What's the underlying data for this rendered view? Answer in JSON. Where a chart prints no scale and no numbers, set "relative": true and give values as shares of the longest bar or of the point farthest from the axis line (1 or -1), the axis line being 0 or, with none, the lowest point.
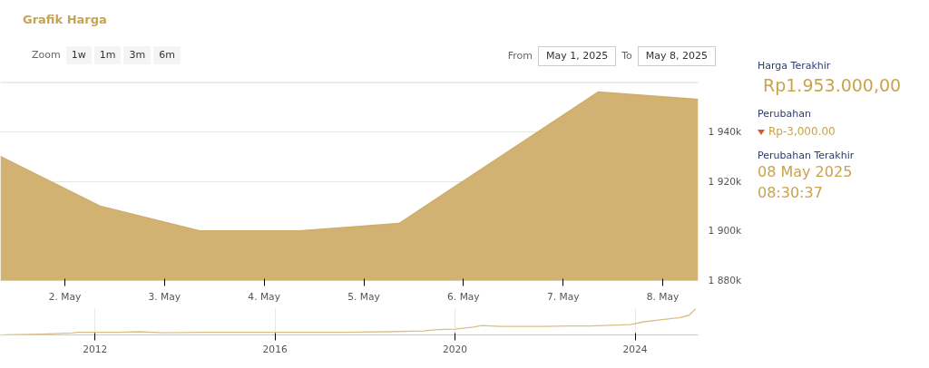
{
  "chart_data": [
    {
      "type": "area",
      "title": "Grafik Harga",
      "color": "#cfae6c",
      "x": [
        "2025-05-01T08:30",
        "2025-05-02T08:30",
        "2025-05-03T08:30",
        "2025-05-04T08:30",
        "2025-05-05T08:30",
        "2025-05-07T08:30",
        "2025-05-08T08:30"
      ],
      "values": [
        1930,
        1910,
        1900,
        1900,
        1903,
        1956,
        1953
      ],
      "xlim": [
        "2025-05-01T08:30",
        "2025-05-08T08:30"
      ],
      "xticks": [
        {
          "value": "2025-05-02",
          "label": "2. May"
        },
        {
          "value": "2025-05-03",
          "label": "3. May"
        },
        {
          "value": "2025-05-04",
          "label": "4. May"
        },
        {
          "value": "2025-05-05",
          "label": "5. May"
        },
        {
          "value": "2025-05-06",
          "label": "6. May"
        },
        {
          "value": "2025-05-07",
          "label": "7. May"
        },
        {
          "value": "2025-05-08",
          "label": "8. May"
        }
      ],
      "ylim": [
        1880,
        1960
      ],
      "yticks": [
        {
          "value": 1880,
          "label": "1 880k"
        },
        {
          "value": 1900,
          "label": "1 900k"
        },
        {
          "value": 1920,
          "label": "1 920k"
        },
        {
          "value": 1940,
          "label": "1 940k"
        },
        {
          "value": 1960,
          "label": null
        }
      ],
      "grid": "y",
      "annotations": [
        "Zoom",
        "1w",
        "1m",
        "3m",
        "6m",
        "From",
        "May 1, 2025",
        "To",
        "May 8, 2025",
        "Harga Terakhir",
        "Rp1.953.000,00",
        "Perubahan",
        "Rp-3,000.00",
        "Perubahan Terakhir",
        "08 May 2025 08:30:37"
      ]
    },
    {
      "type": "line",
      "relative": true,
      "color": "#d9bf85",
      "x": [
        2010.0,
        2010.8,
        2011.5,
        2011.6,
        2012.5,
        2013.0,
        2013.5,
        2014.5,
        2015.5,
        2016.5,
        2017.5,
        2018.5,
        2019.3,
        2019.6,
        2020.0,
        2020.4,
        2020.6,
        2021.0,
        2022.0,
        2022.5,
        2023.0,
        2023.9,
        2024.2,
        2024.6,
        2025.0,
        2025.2,
        2025.35
      ],
      "values": [
        0,
        0.03,
        0.07,
        0.1,
        0.1,
        0.12,
        0.08,
        0.1,
        0.1,
        0.1,
        0.1,
        0.12,
        0.15,
        0.2,
        0.22,
        0.3,
        0.36,
        0.32,
        0.32,
        0.34,
        0.34,
        0.39,
        0.5,
        0.58,
        0.66,
        0.75,
        1
      ],
      "xlim": [
        2009.9,
        2025.4
      ],
      "xticks": [
        2012,
        2016,
        2020,
        2024
      ],
      "tick_labels": "x",
      "grid": "x"
    }
  ]
}
